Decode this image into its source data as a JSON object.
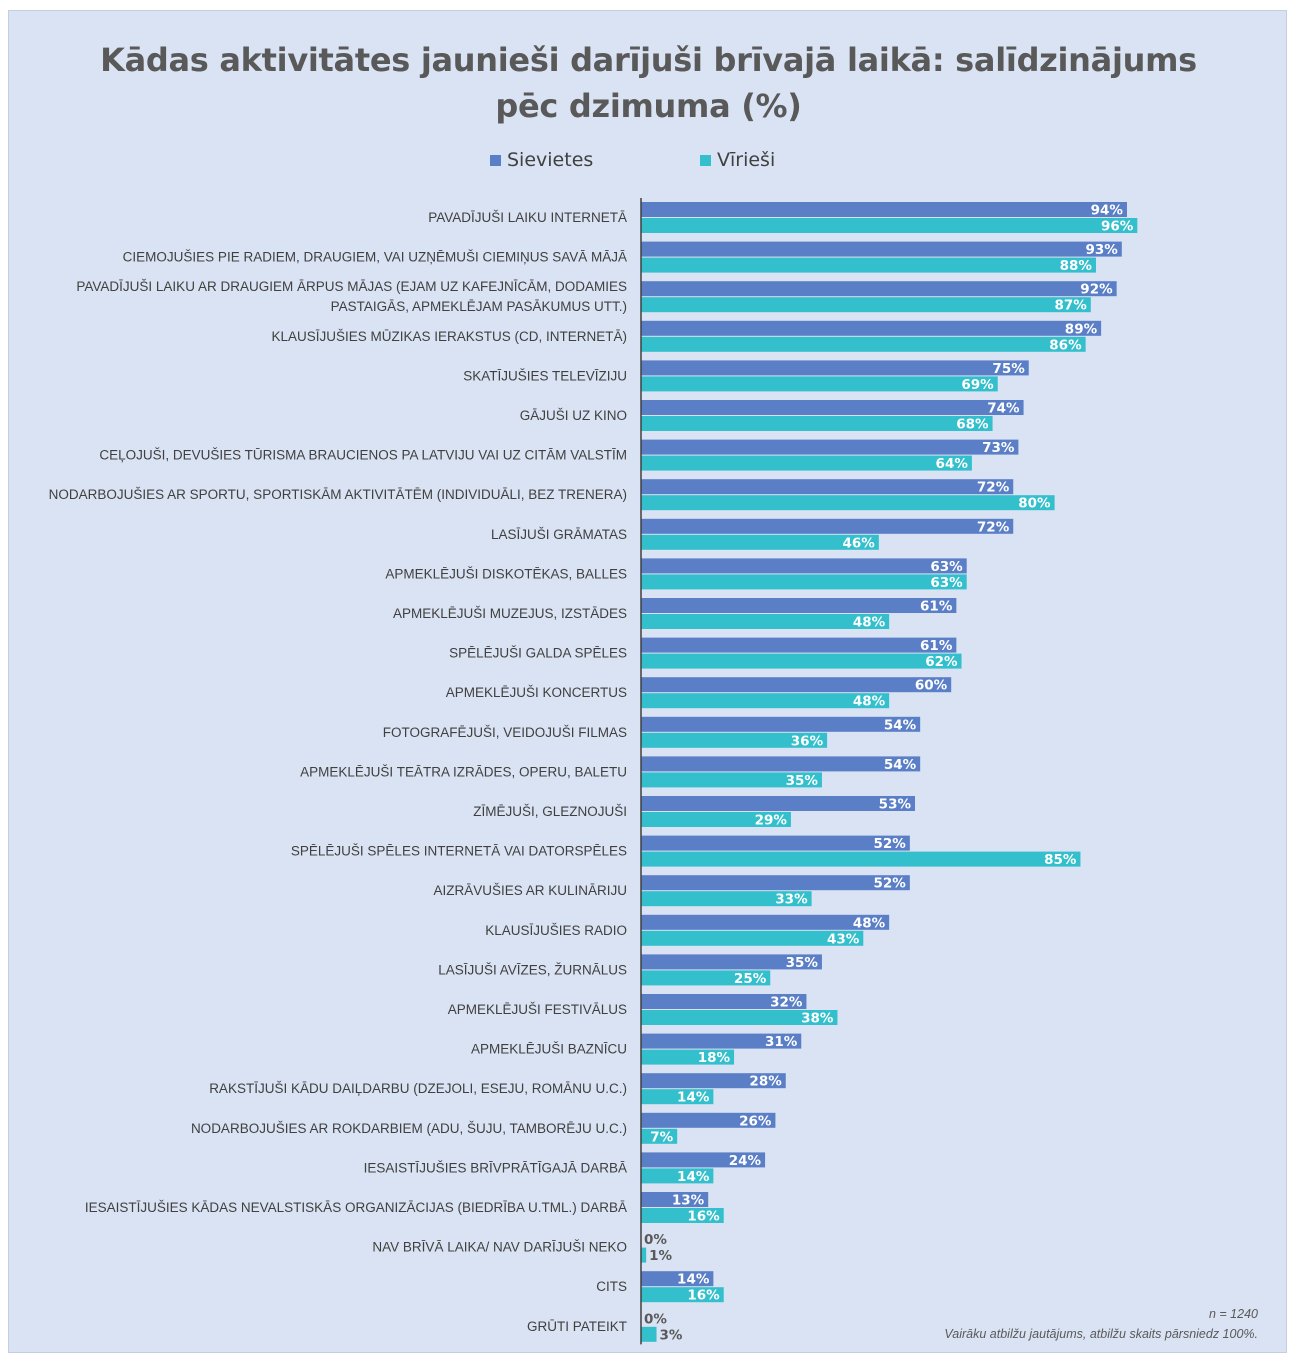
{
  "chart_data": {
    "type": "bar",
    "orientation": "horizontal",
    "title": "Kādas aktivitātes jaunieši darījuši brīvajā laikā: salīdzinājums pēc dzimuma (%)",
    "title_lines": [
      "Kādas aktivitātes jaunieši darījuši brīvajā laikā: salīdzinājums",
      "pēc dzimuma (%)"
    ],
    "legend_position": "top",
    "xlim": [
      0,
      100
    ],
    "grid": false,
    "categories": [
      "PAVADĪJUŠI LAIKU INTERNETĀ",
      "CIEMOJUŠIES PIE RADIEM, DRAUGIEM, VAI UZŅĒMUŠI CIEMIŅUS SAVĀ MĀJĀ",
      "PAVADĪJUŠI LAIKU AR DRAUGIEM ĀRPUS MĀJAS (EJAM UZ KAFEJNĪCĀM, DODAMIES PASTAIGĀS, APMEKLĒJAM PASĀKUMUS UTT.)",
      "KLAUSĪJUŠIES MŪZIKAS IERAKSTUS (CD, INTERNETĀ)",
      "SKATĪJUŠIES TELEVĪZIJU",
      "GĀJUŠI UZ KINO",
      "CEĻOJUŠI, DEVUŠIES TŪRISMA BRAUCIENOS PA LATVIJU VAI UZ CITĀM VALSTĪM",
      "NODARBOJUŠIES AR SPORTU, SPORTISKĀM AKTIVITĀTĒM (INDIVIDUĀLI, BEZ TRENERA)",
      "LASĪJUŠI GRĀMATAS",
      "APMEKLĒJUŠI DISKOTĒKAS, BALLES",
      "APMEKLĒJUŠI MUZEJUS, IZSTĀDES",
      "SPĒLĒJUŠI GALDA SPĒLES",
      "APMEKLĒJUŠI KONCERTUS",
      "FOTOGRAFĒJUŠI, VEIDOJUŠI FILMAS",
      "APMEKLĒJUŠI TEĀTRA IZRĀDES, OPERU, BALETU",
      "ZĪMĒJUŠI, GLEZNOJUŠI",
      "SPĒLĒJUŠI SPĒLES INTERNETĀ VAI DATORSPĒLES",
      "AIZRĀVUŠIES AR KULINĀRIJU",
      "KLAUSĪJUŠIES RADIO",
      "LASĪJUŠI AVĪZES, ŽURNĀLUS",
      "APMEKLĒJUŠI FESTIVĀLUS",
      "APMEKLĒJUŠI BAZNĪCU",
      "RAKSTĪJUŠI KĀDU DAIĻDARBU (DZEJOLI, ESEJU, ROMĀNU U.C.)",
      "NODARBOJUŠIES AR ROKDARBIEM (ADU, ŠUJU, TAMBORĒJU U.C.)",
      "IESAISTĪJUŠIES BRĪVPRĀTĪGAJĀ DARBĀ",
      "IESAISTĪJUŠIES KĀDAS NEVALSTISKĀS ORGANIZĀCIJAS (BIEDRĪBA U.TML.) DARBĀ",
      "NAV BRĪVĀ LAIKA/ NAV DARĪJUŠI NEKO",
      "CITS",
      "GRŪTI PATEIKT"
    ],
    "category_lines": [
      [
        "PAVADĪJUŠI LAIKU INTERNETĀ"
      ],
      [
        "CIEMOJUŠIES PIE RADIEM, DRAUGIEM, VAI UZŅĒMUŠI CIEMIŅUS SAVĀ MĀJĀ"
      ],
      [
        "PAVADĪJUŠI LAIKU AR DRAUGIEM ĀRPUS MĀJAS (EJAM UZ KAFEJNĪCĀM, DODAMIES",
        "PASTAIGĀS, APMEKLĒJAM PASĀKUMUS UTT.)"
      ],
      [
        "KLAUSĪJUŠIES MŪZIKAS IERAKSTUS (CD, INTERNETĀ)"
      ],
      [
        "SKATĪJUŠIES TELEVĪZIJU"
      ],
      [
        "GĀJUŠI UZ KINO"
      ],
      [
        "CEĻOJUŠI, DEVUŠIES TŪRISMA BRAUCIENOS PA LATVIJU VAI UZ CITĀM VALSTĪM"
      ],
      [
        "NODARBOJUŠIES AR SPORTU, SPORTISKĀM AKTIVITĀTĒM (INDIVIDUĀLI, BEZ TRENERA)"
      ],
      [
        "LASĪJUŠI GRĀMATAS"
      ],
      [
        "APMEKLĒJUŠI DISKOTĒKAS, BALLES"
      ],
      [
        "APMEKLĒJUŠI MUZEJUS, IZSTĀDES"
      ],
      [
        "SPĒLĒJUŠI GALDA SPĒLES"
      ],
      [
        "APMEKLĒJUŠI KONCERTUS"
      ],
      [
        "FOTOGRAFĒJUŠI, VEIDOJUŠI FILMAS"
      ],
      [
        "APMEKLĒJUŠI TEĀTRA IZRĀDES, OPERU, BALETU"
      ],
      [
        "ZĪMĒJUŠI, GLEZNOJUŠI"
      ],
      [
        "SPĒLĒJUŠI SPĒLES INTERNETĀ VAI DATORSPĒLES"
      ],
      [
        "AIZRĀVUŠIES AR KULINĀRIJU"
      ],
      [
        "KLAUSĪJUŠIES RADIO"
      ],
      [
        "LASĪJUŠI AVĪZES, ŽURNĀLUS"
      ],
      [
        "APMEKLĒJUŠI FESTIVĀLUS"
      ],
      [
        "APMEKLĒJUŠI BAZNĪCU"
      ],
      [
        "RAKSTĪJUŠI KĀDU DAIĻDARBU (DZEJOLI, ESEJU, ROMĀNU U.C.)"
      ],
      [
        "NODARBOJUŠIES AR ROKDARBIEM (ADU, ŠUJU, TAMBORĒJU U.C.)"
      ],
      [
        "IESAISTĪJUŠIES BRĪVPRĀTĪGAJĀ DARBĀ"
      ],
      [
        "IESAISTĪJUŠIES KĀDAS NEVALSTISKĀS ORGANIZĀCIJAS (BIEDRĪBA U.TML.) DARBĀ"
      ],
      [
        "NAV BRĪVĀ LAIKA/ NAV DARĪJUŠI NEKO"
      ],
      [
        "CITS"
      ],
      [
        "GRŪTI PATEIKT"
      ]
    ],
    "series": [
      {
        "name": "Sievietes",
        "color": "#5b7fc7",
        "values": [
          94,
          93,
          92,
          89,
          75,
          74,
          73,
          72,
          72,
          63,
          61,
          61,
          60,
          54,
          54,
          53,
          52,
          52,
          48,
          35,
          32,
          31,
          28,
          26,
          24,
          13,
          0,
          14,
          0
        ]
      },
      {
        "name": "Vīrieši",
        "color": "#33bfcc",
        "values": [
          96,
          88,
          87,
          86,
          69,
          68,
          64,
          80,
          46,
          63,
          48,
          62,
          48,
          36,
          35,
          29,
          85,
          33,
          43,
          25,
          38,
          18,
          14,
          7,
          14,
          16,
          1,
          16,
          3
        ]
      }
    ],
    "value_suffix": "%"
  },
  "notes": {
    "n": "n = 1240",
    "multi": "Vairāku atbilžu jautājums, atbilžu skaits pārsniedz 100%."
  },
  "colors": {
    "background": "#dae3f3",
    "axis": "#404040"
  }
}
